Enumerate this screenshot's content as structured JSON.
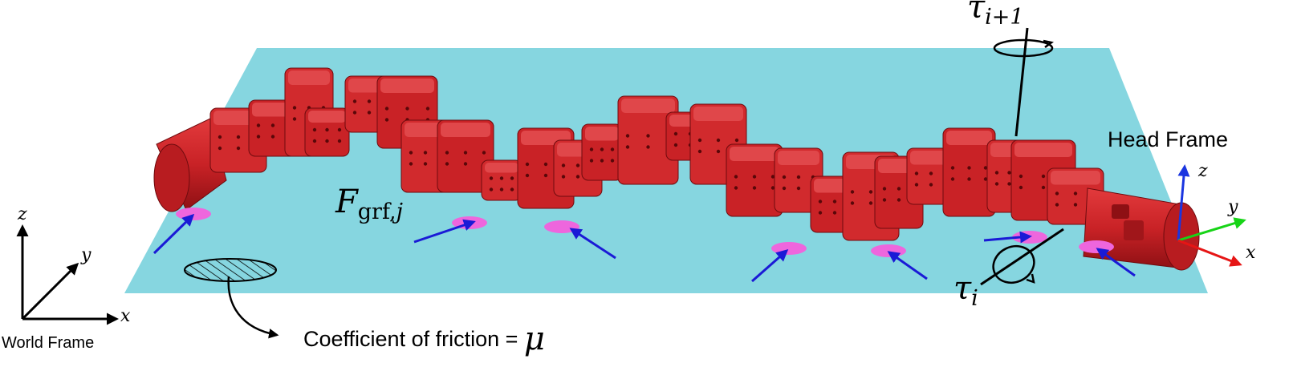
{
  "labels": {
    "head_frame": "Head Frame",
    "world_frame": "World Frame",
    "friction_text": "Coefficient of friction = ",
    "mu": "μ",
    "force_main": "F",
    "force_sub": "grf,",
    "force_j": "j",
    "tau_next": "τ",
    "tau_next_sub": "i+1",
    "tau_i": "τ",
    "tau_i_sub": "i",
    "axis_x": "x",
    "axis_y": "y",
    "axis_z": "z"
  },
  "colors": {
    "ground_plane": "#86d6e0",
    "robot_red": "#c92226",
    "robot_dark": "#8e1014",
    "contact_pink": "#ee66dd",
    "force_arrow": "#1a1ad6",
    "axis_x_color": "#e61515",
    "axis_y_color": "#17d417",
    "axis_z_color": "#1a35e0",
    "line_black": "#000000"
  }
}
